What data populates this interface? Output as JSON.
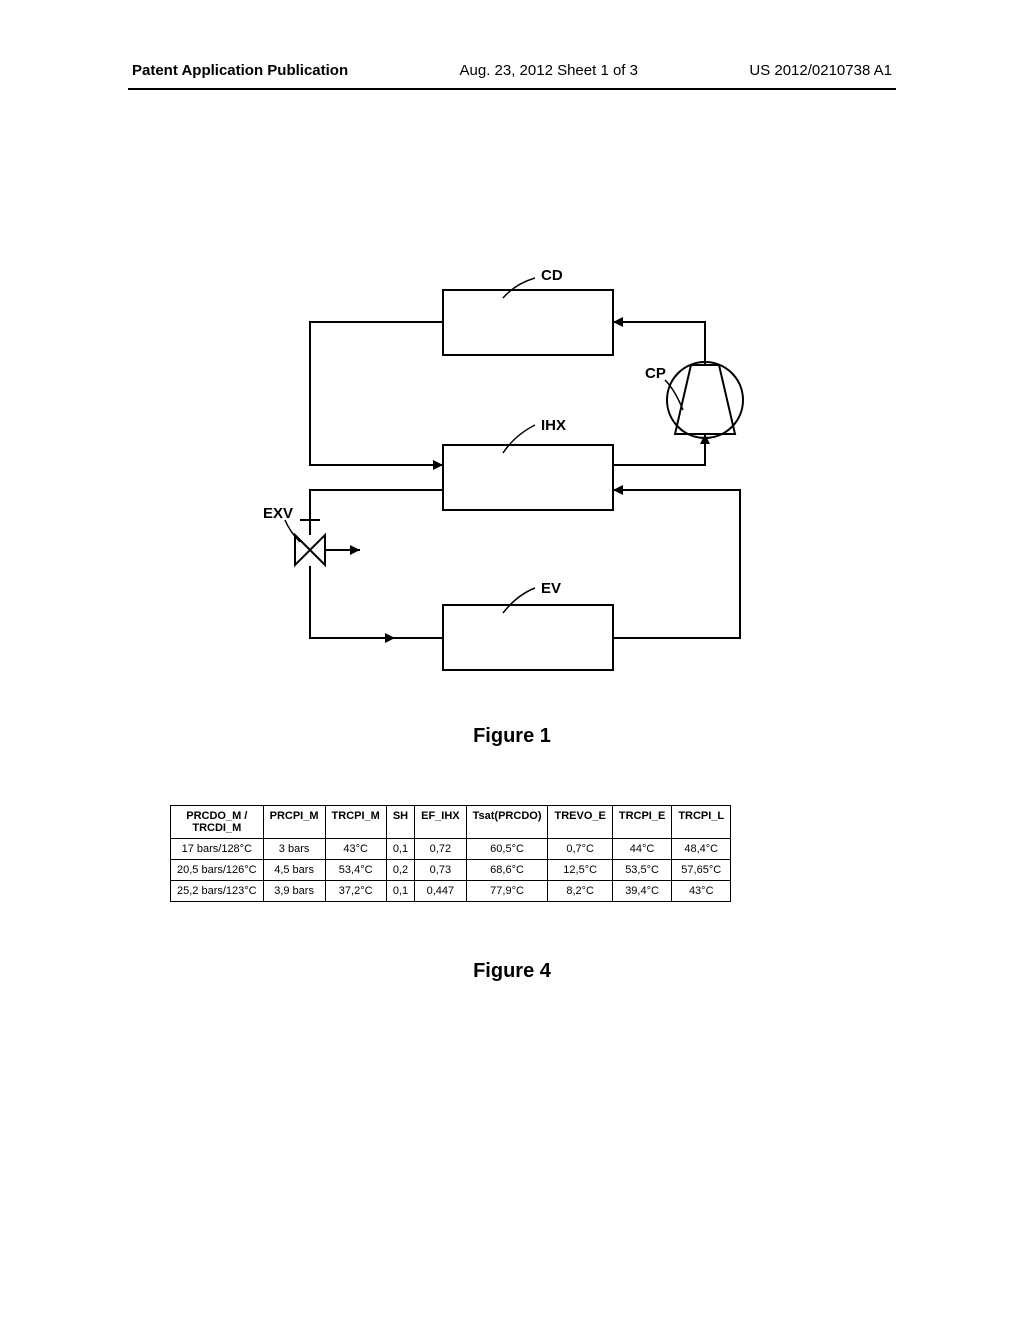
{
  "header": {
    "left": "Patent Application Publication",
    "middle": "Aug. 23, 2012  Sheet 1 of 3",
    "right": "US 2012/0210738 A1"
  },
  "figure1": {
    "caption": "Figure 1",
    "labels": {
      "cd": "CD",
      "cp": "CP",
      "ihx": "IHX",
      "exv": "EXV",
      "ev": "EV"
    }
  },
  "figure4": {
    "caption": "Figure 4",
    "columns": [
      "PRCDO_M / TRCDI_M",
      "PRCPI_M",
      "TRCPI_M",
      "SH",
      "EF_IHX",
      "Tsat(PRCDO)",
      "TREVO_E",
      "TRCPI_E",
      "TRCPI_L"
    ],
    "rows": [
      [
        "17 bars/128°C",
        "3 bars",
        "43°C",
        "0,1",
        "0,72",
        "60,5°C",
        "0,7°C",
        "44°C",
        "48,4°C"
      ],
      [
        "20,5 bars/126°C",
        "4,5 bars",
        "53,4°C",
        "0,2",
        "0,73",
        "68,6°C",
        "12,5°C",
        "53,5°C",
        "57,65°C"
      ],
      [
        "25,2 bars/123°C",
        "3,9 bars",
        "37,2°C",
        "0,1",
        "0,447",
        "77,9°C",
        "8,2°C",
        "39,4°C",
        "43°C"
      ]
    ]
  }
}
